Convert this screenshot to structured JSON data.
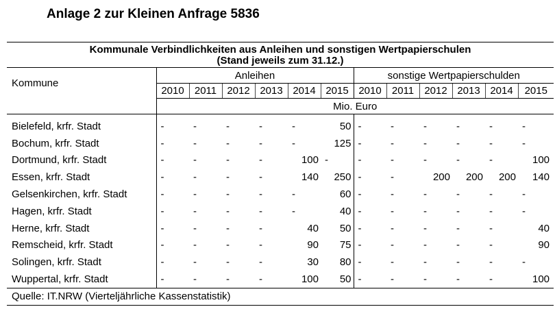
{
  "document_title": "Anlage 2 zur Kleinen Anfrage 5836",
  "table": {
    "caption_line1": "Kommunale Verbindlichkeiten aus Anleihen und sonstigen Wertpapierschulen",
    "caption_line2": "(Stand jeweils zum 31.12.)",
    "row_header": "Kommune",
    "group1": "Anleihen",
    "group2": "sonstige Wertpapierschulden",
    "years": [
      "2010",
      "2011",
      "2012",
      "2013",
      "2014",
      "2015"
    ],
    "unit": "Mio. Euro",
    "rows": [
      {
        "name": "Bielefeld, krfr. Stadt",
        "anleihen": [
          "-",
          "-",
          "-",
          "-",
          "-",
          "50"
        ],
        "sonstige": [
          "-",
          "-",
          "-",
          "-",
          "-",
          "-"
        ]
      },
      {
        "name": "Bochum, krfr. Stadt",
        "anleihen": [
          "-",
          "-",
          "-",
          "-",
          "-",
          "125"
        ],
        "sonstige": [
          "-",
          "-",
          "-",
          "-",
          "-",
          "-"
        ]
      },
      {
        "name": "Dortmund, krfr. Stadt",
        "anleihen": [
          "-",
          "-",
          "-",
          "-",
          "100",
          "-"
        ],
        "sonstige": [
          "-",
          "-",
          "-",
          "-",
          "-",
          "100"
        ]
      },
      {
        "name": "Essen, krfr. Stadt",
        "anleihen": [
          "-",
          "-",
          "-",
          "-",
          "140",
          "250"
        ],
        "sonstige": [
          "-",
          "-",
          "200",
          "200",
          "200",
          "140"
        ]
      },
      {
        "name": "Gelsenkirchen, krfr. Stadt",
        "anleihen": [
          "-",
          "-",
          "-",
          "-",
          "-",
          "60"
        ],
        "sonstige": [
          "-",
          "-",
          "-",
          "-",
          "-",
          "-"
        ]
      },
      {
        "name": "Hagen, krfr. Stadt",
        "anleihen": [
          "-",
          "-",
          "-",
          "-",
          "-",
          "40"
        ],
        "sonstige": [
          "-",
          "-",
          "-",
          "-",
          "-",
          "-"
        ]
      },
      {
        "name": "Herne, krfr. Stadt",
        "anleihen": [
          "-",
          "-",
          "-",
          "-",
          "40",
          "50"
        ],
        "sonstige": [
          "-",
          "-",
          "-",
          "-",
          "-",
          "40"
        ]
      },
      {
        "name": "Remscheid, krfr. Stadt",
        "anleihen": [
          "-",
          "-",
          "-",
          "-",
          "90",
          "75"
        ],
        "sonstige": [
          "-",
          "-",
          "-",
          "-",
          "-",
          "90"
        ]
      },
      {
        "name": "Solingen, krfr. Stadt",
        "anleihen": [
          "-",
          "-",
          "-",
          "-",
          "30",
          "80"
        ],
        "sonstige": [
          "-",
          "-",
          "-",
          "-",
          "-",
          "-"
        ]
      },
      {
        "name": "Wuppertal, krfr. Stadt",
        "anleihen": [
          "-",
          "-",
          "-",
          "-",
          "100",
          "50"
        ],
        "sonstige": [
          "-",
          "-",
          "-",
          "-",
          "-",
          "100"
        ]
      }
    ],
    "source": "Quelle: IT.NRW (Vierteljährliche Kassenstatistik)"
  }
}
